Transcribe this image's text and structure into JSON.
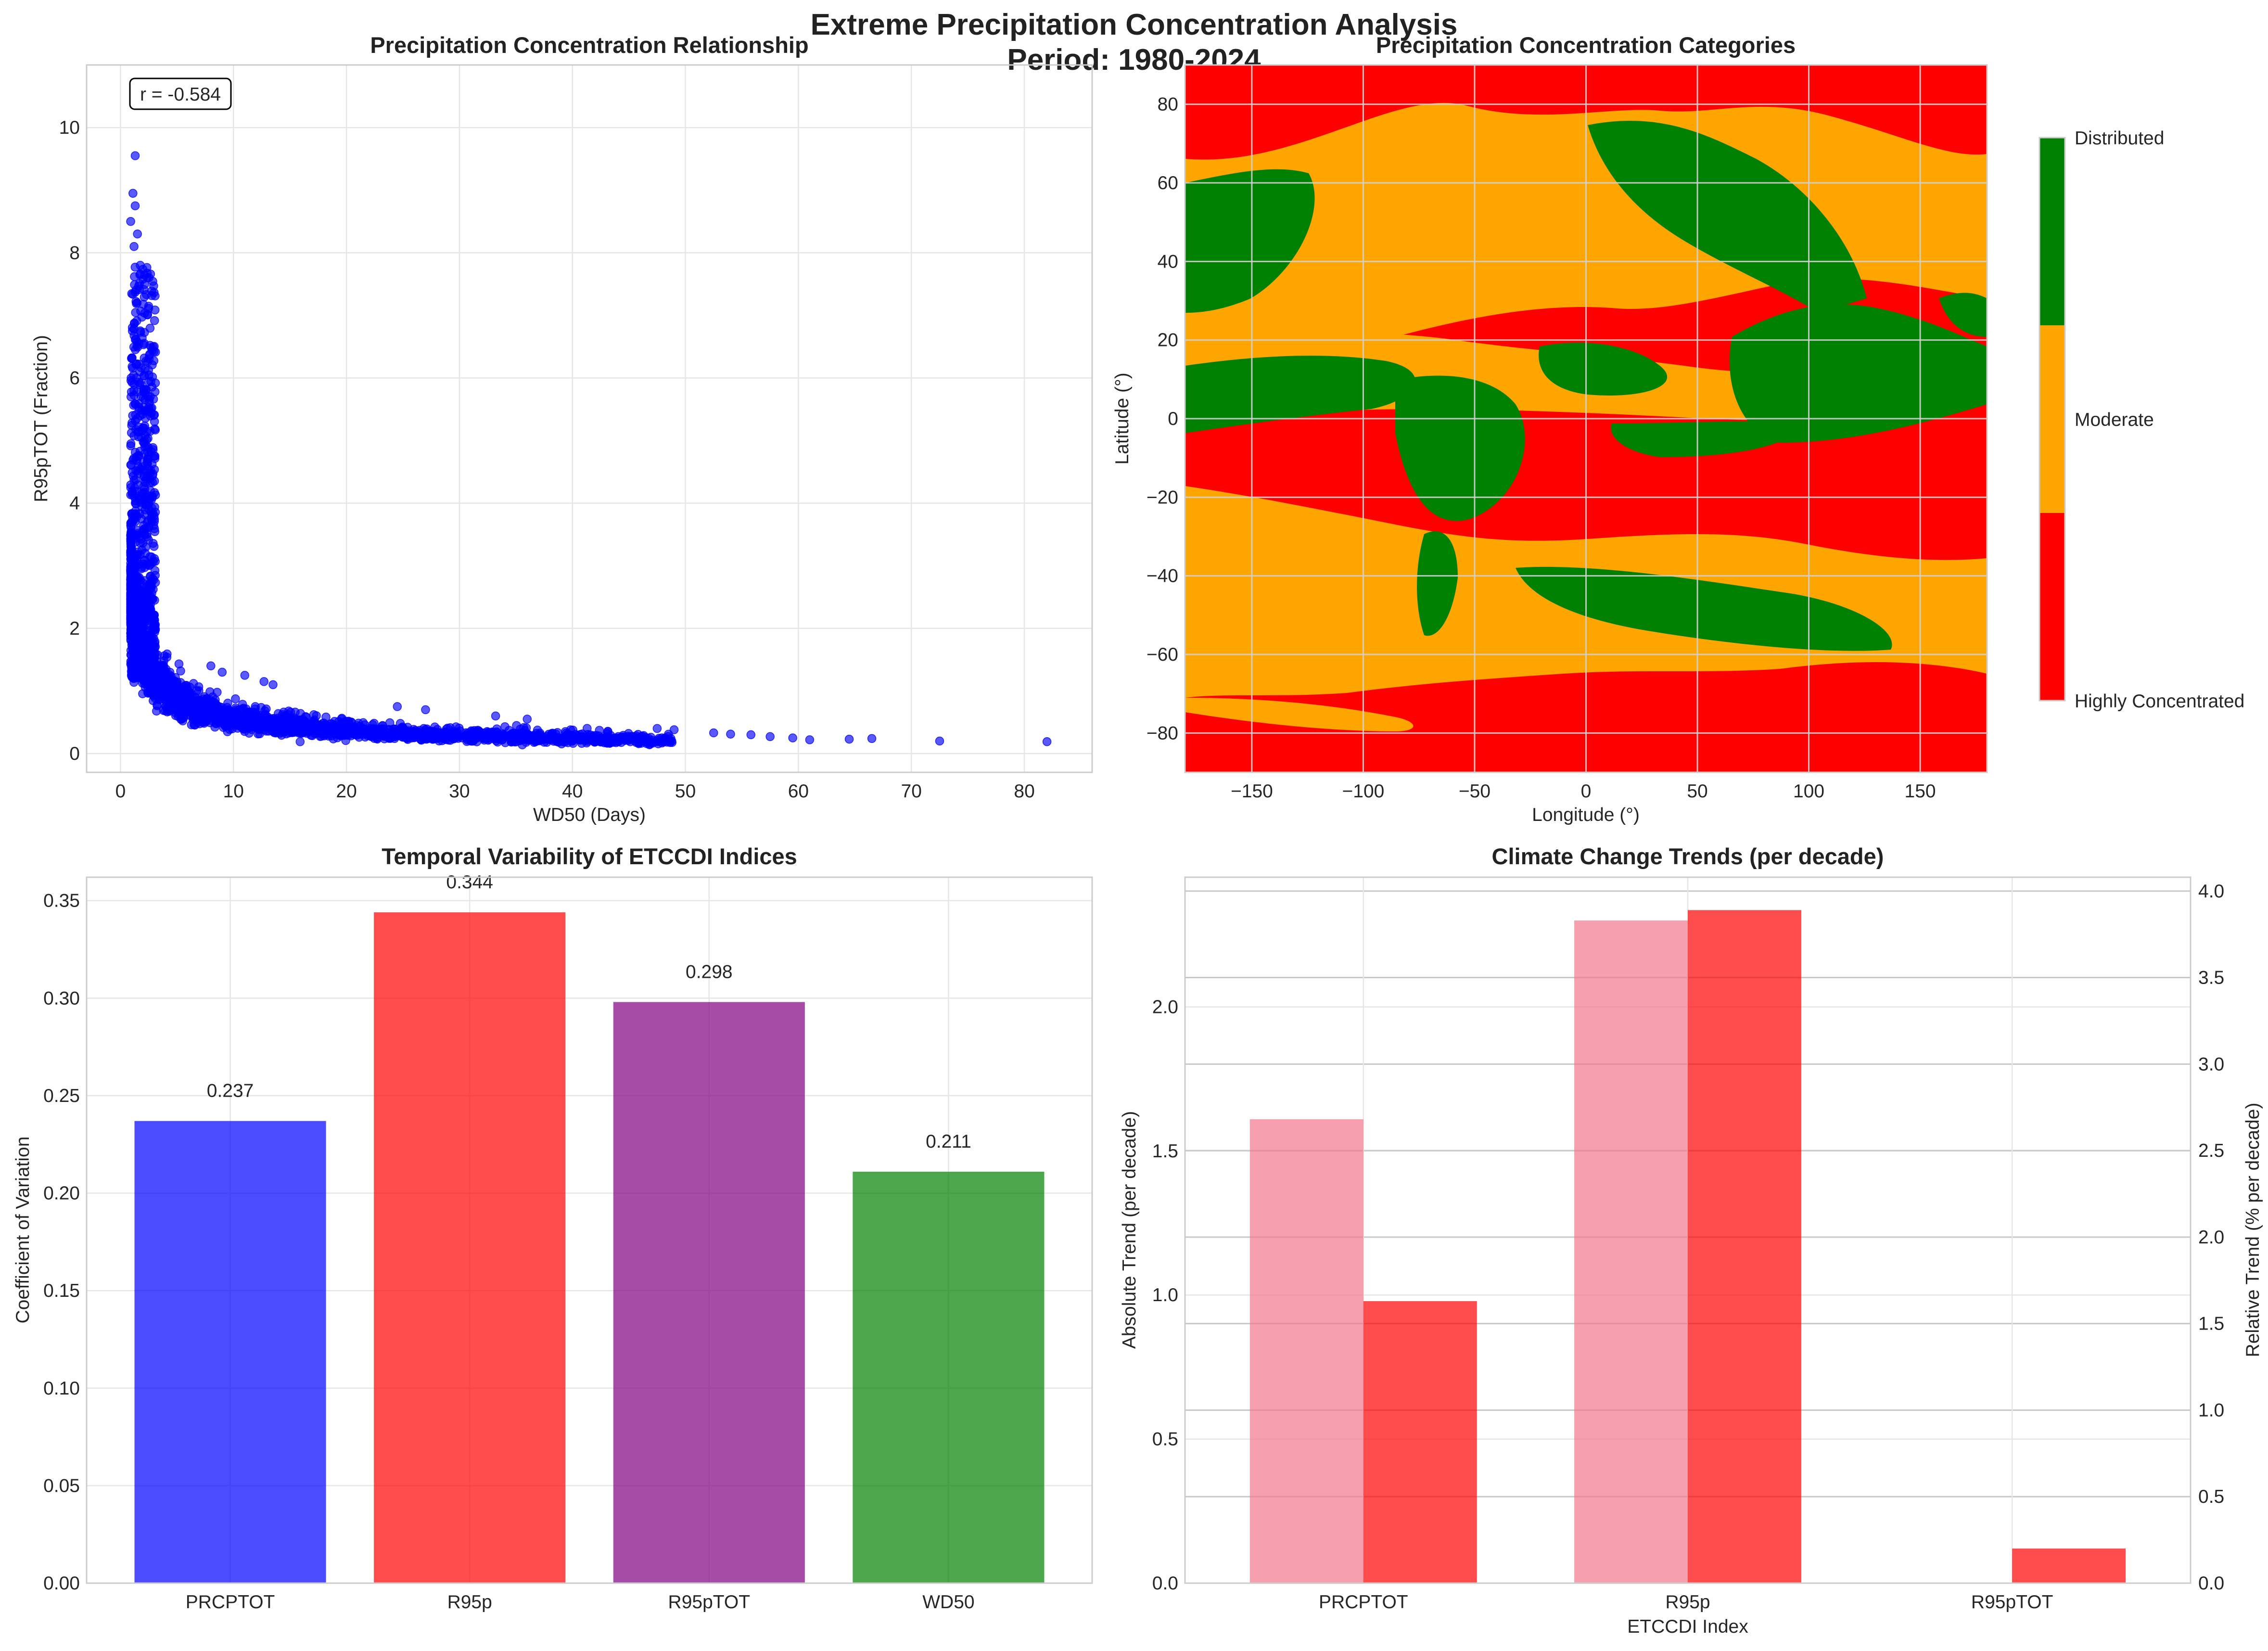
{
  "figure": {
    "title_line1": "Extreme Precipitation Concentration Analysis",
    "title_line2": "Period: 1980-2024"
  },
  "chart_data": [
    {
      "id": "scatter",
      "type": "scatter",
      "title": "Precipitation Concentration Relationship",
      "xlabel": "WD50 (Days)",
      "ylabel": "R95pTOT (Fraction)",
      "xlim": [
        -3,
        86
      ],
      "ylim": [
        -0.3,
        11
      ],
      "xticks": [
        0,
        10,
        20,
        30,
        40,
        50,
        60,
        70,
        80
      ],
      "yticks": [
        0,
        2,
        4,
        6,
        8,
        10
      ],
      "annotation": "r = -0.584",
      "color": "#0000ff",
      "relation": {
        "form": "power",
        "a": 2.4,
        "b": -0.63
      },
      "outliers": [
        [
          52.5,
          0.33
        ],
        [
          54,
          0.31
        ],
        [
          55.8,
          0.3
        ],
        [
          57.5,
          0.27
        ],
        [
          59.5,
          0.25
        ],
        [
          61,
          0.22
        ],
        [
          64.5,
          0.23
        ],
        [
          66.5,
          0.24
        ],
        [
          72.5,
          0.2
        ],
        [
          82,
          0.19
        ],
        [
          1.3,
          9.55
        ],
        [
          1.1,
          8.95
        ],
        [
          1.3,
          8.75
        ],
        [
          0.9,
          8.5
        ],
        [
          1.5,
          8.3
        ],
        [
          1.2,
          8.1
        ],
        [
          8,
          1.4
        ],
        [
          9,
          1.3
        ],
        [
          11,
          1.25
        ],
        [
          12.7,
          1.15
        ],
        [
          13.5,
          1.1
        ],
        [
          24.5,
          0.75
        ],
        [
          27,
          0.7
        ],
        [
          33.2,
          0.6
        ],
        [
          36,
          0.55
        ],
        [
          47.5,
          0.4
        ],
        [
          49,
          0.38
        ]
      ],
      "grid": true
    },
    {
      "id": "map",
      "type": "heatmap",
      "title": "Precipitation Concentration Categories",
      "xlabel": "Longitude (°)",
      "ylabel": "Latitude (°)",
      "xlim": [
        -180,
        180
      ],
      "ylim": [
        -90,
        90
      ],
      "xticks": [
        -150,
        -100,
        -50,
        0,
        50,
        100,
        150
      ],
      "yticks": [
        -80,
        -60,
        -40,
        -20,
        0,
        20,
        40,
        60,
        80
      ],
      "categories": [
        "Highly Concentrated",
        "Moderate",
        "Distributed"
      ],
      "colors": [
        "#ff0000",
        "#ffa500",
        "#008000"
      ],
      "grid": true
    },
    {
      "id": "cv",
      "type": "bar",
      "title": "Temporal Variability of ETCCDI Indices",
      "ylabel": "Coefficient of Variation",
      "categories": [
        "PRCPTOT",
        "R95p",
        "R95pTOT",
        "WD50"
      ],
      "values": [
        0.237,
        0.344,
        0.298,
        0.211
      ],
      "value_labels": [
        "0.237",
        "0.344",
        "0.298",
        "0.211"
      ],
      "colors": [
        "#0000ff",
        "#ff0000",
        "#800080",
        "#008000"
      ],
      "ylim": [
        0,
        0.362
      ],
      "yticks": [
        "0.00",
        "0.05",
        "0.10",
        "0.15",
        "0.20",
        "0.25",
        "0.30",
        "0.35"
      ],
      "grid": true
    },
    {
      "id": "trends",
      "type": "bar",
      "title": "Climate Change Trends (per decade)",
      "xlabel": "ETCCDI Index",
      "ylabel_left": "Absolute Trend (per decade)",
      "ylabel_right": "Relative Trend (% per decade)",
      "right_label_color": "#ff0000",
      "categories": [
        "PRCPTOT",
        "R95p",
        "R95pTOT"
      ],
      "series": [
        {
          "axis": "left",
          "values": [
            1.61,
            2.3,
            0.0
          ],
          "color": "#f4788a"
        },
        {
          "axis": "right",
          "values": [
            1.63,
            3.89,
            0.2
          ],
          "color": "#ff0000"
        }
      ],
      "ylim_left": [
        0,
        2.45
      ],
      "ylim_right": [
        0,
        4.08
      ],
      "yticks_left": [
        "0.0",
        "0.5",
        "1.0",
        "1.5",
        "2.0"
      ],
      "yticks_right": [
        "0.0",
        "0.5",
        "1.0",
        "1.5",
        "2.0",
        "2.5",
        "3.0",
        "3.5",
        "4.0"
      ],
      "grid": true
    }
  ]
}
